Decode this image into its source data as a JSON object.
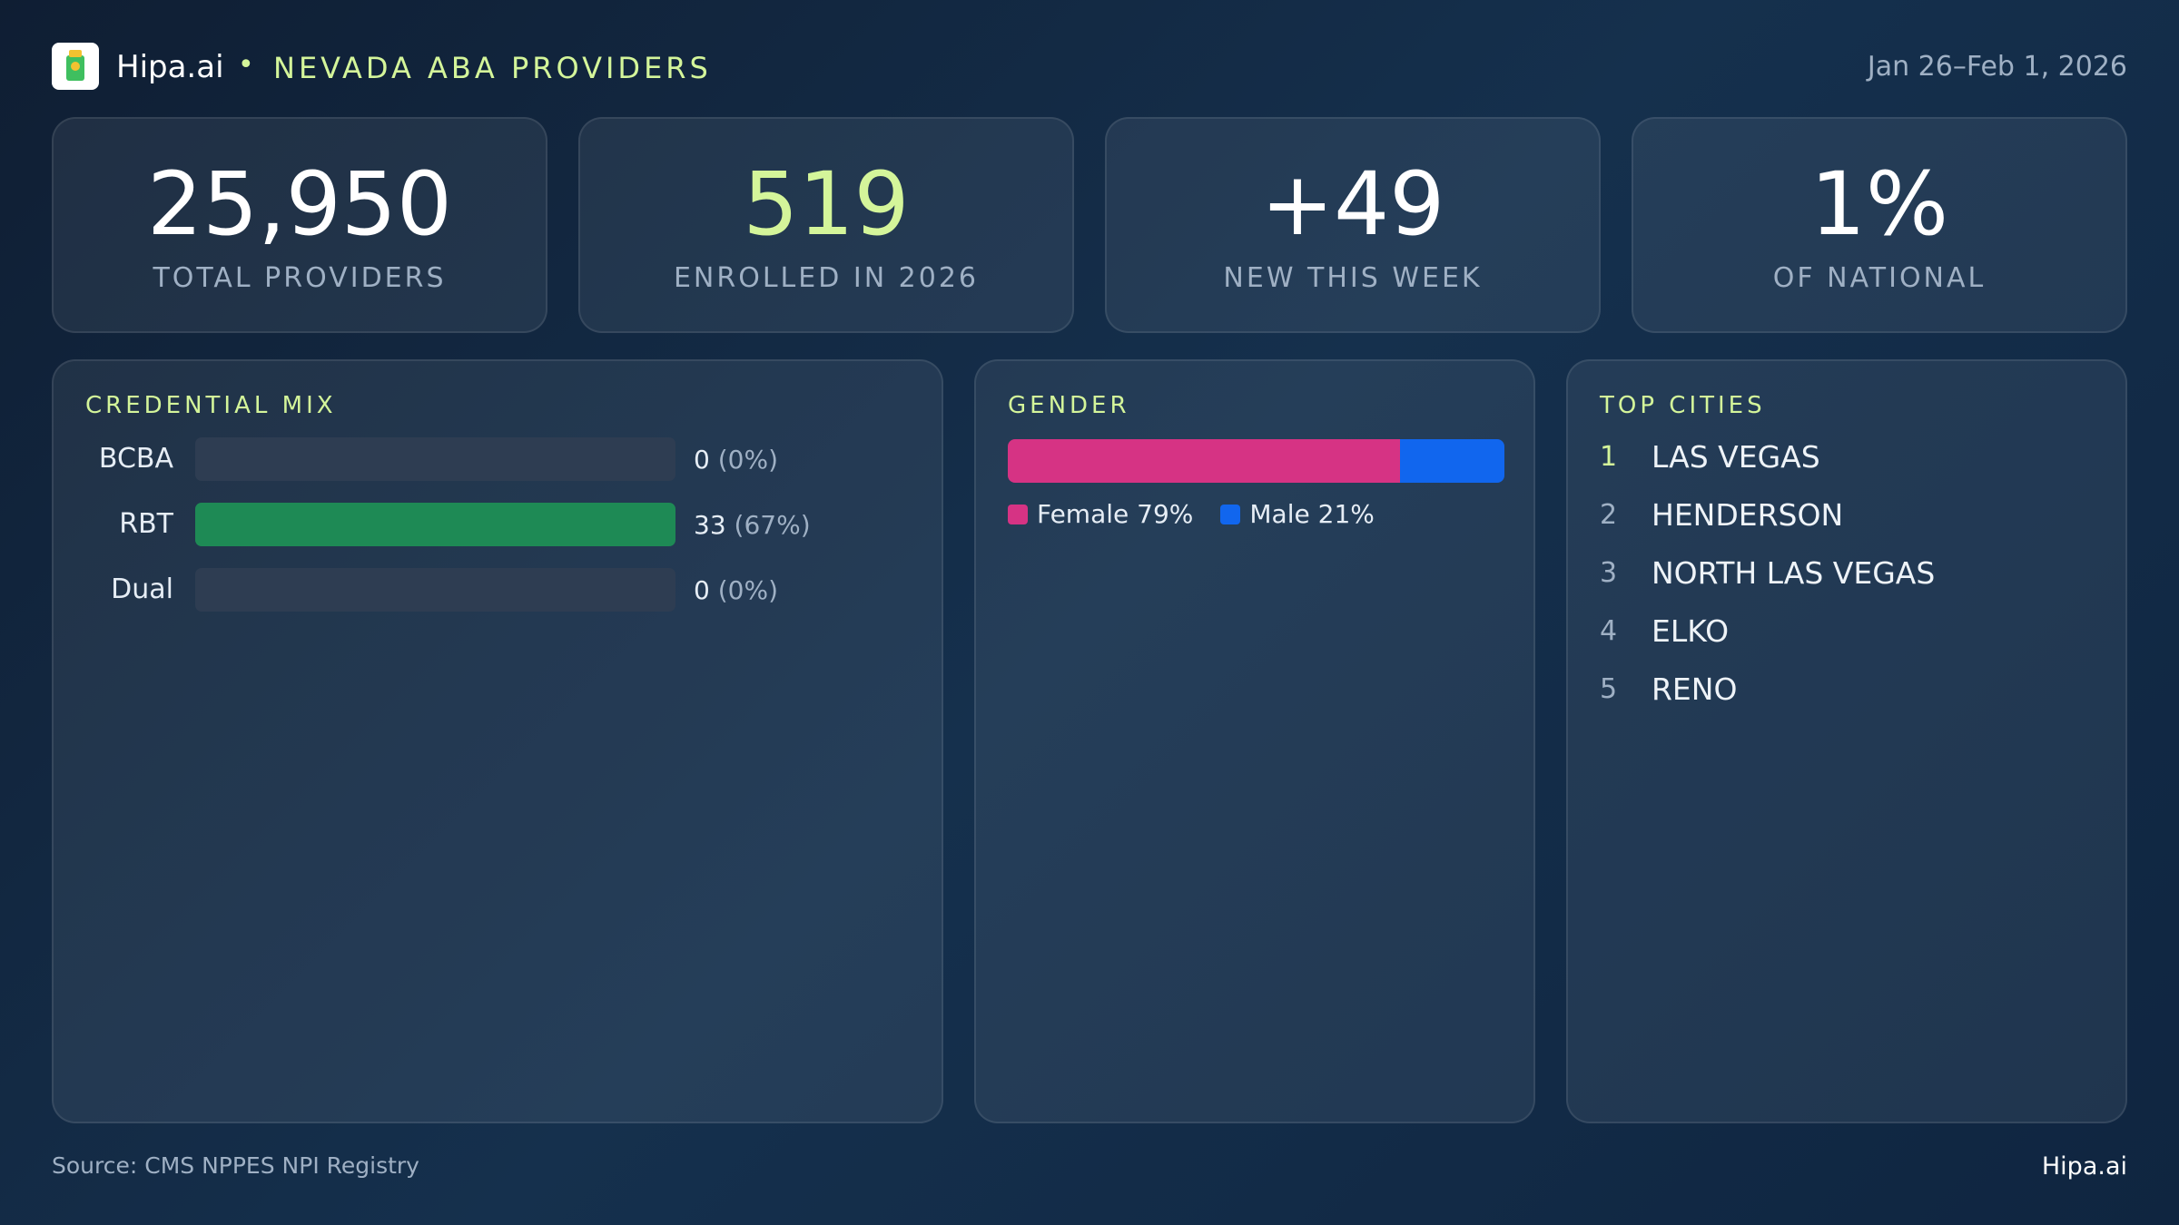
{
  "header": {
    "brand": "Hipa.ai",
    "title": "NEVADA ABA PROVIDERS",
    "date_range": "Jan 26–Feb 1, 2026"
  },
  "stats": [
    {
      "value": "25,950",
      "label": "TOTAL PROVIDERS",
      "color": "#ffffff"
    },
    {
      "value": "519",
      "label": "ENROLLED IN 2026",
      "color": "#d4f59a"
    },
    {
      "value": "+49",
      "label": "NEW THIS WEEK",
      "color": "#ffffff"
    },
    {
      "value": "1%",
      "label": "OF NATIONAL",
      "color": "#ffffff"
    }
  ],
  "credential_mix": {
    "title": "CREDENTIAL MIX",
    "color": "#1e8a55",
    "rows": [
      {
        "name": "BCBA",
        "count": 0,
        "percent_label": "(0%)"
      },
      {
        "name": "RBT",
        "count": 33,
        "percent_label": "(67%)"
      },
      {
        "name": "Dual",
        "count": 0,
        "percent_label": "(0%)"
      }
    ]
  },
  "gender": {
    "title": "GENDER",
    "segments": [
      {
        "name": "Female",
        "value": 79,
        "label": "79%",
        "color": "#d63384"
      },
      {
        "name": "Male",
        "value": 21,
        "label": "21%",
        "color": "#1166ee"
      }
    ]
  },
  "top_cities": {
    "title": "TOP CITIES",
    "rows": [
      {
        "rank": 1,
        "name": "LAS VEGAS"
      },
      {
        "rank": 2,
        "name": "HENDERSON"
      },
      {
        "rank": 3,
        "name": "NORTH LAS VEGAS"
      },
      {
        "rank": 4,
        "name": "ELKO"
      },
      {
        "rank": 5,
        "name": "RENO"
      }
    ]
  },
  "footer": {
    "source": "Source: CMS NPPES NPI Registry",
    "brand": "Hipa.ai"
  }
}
